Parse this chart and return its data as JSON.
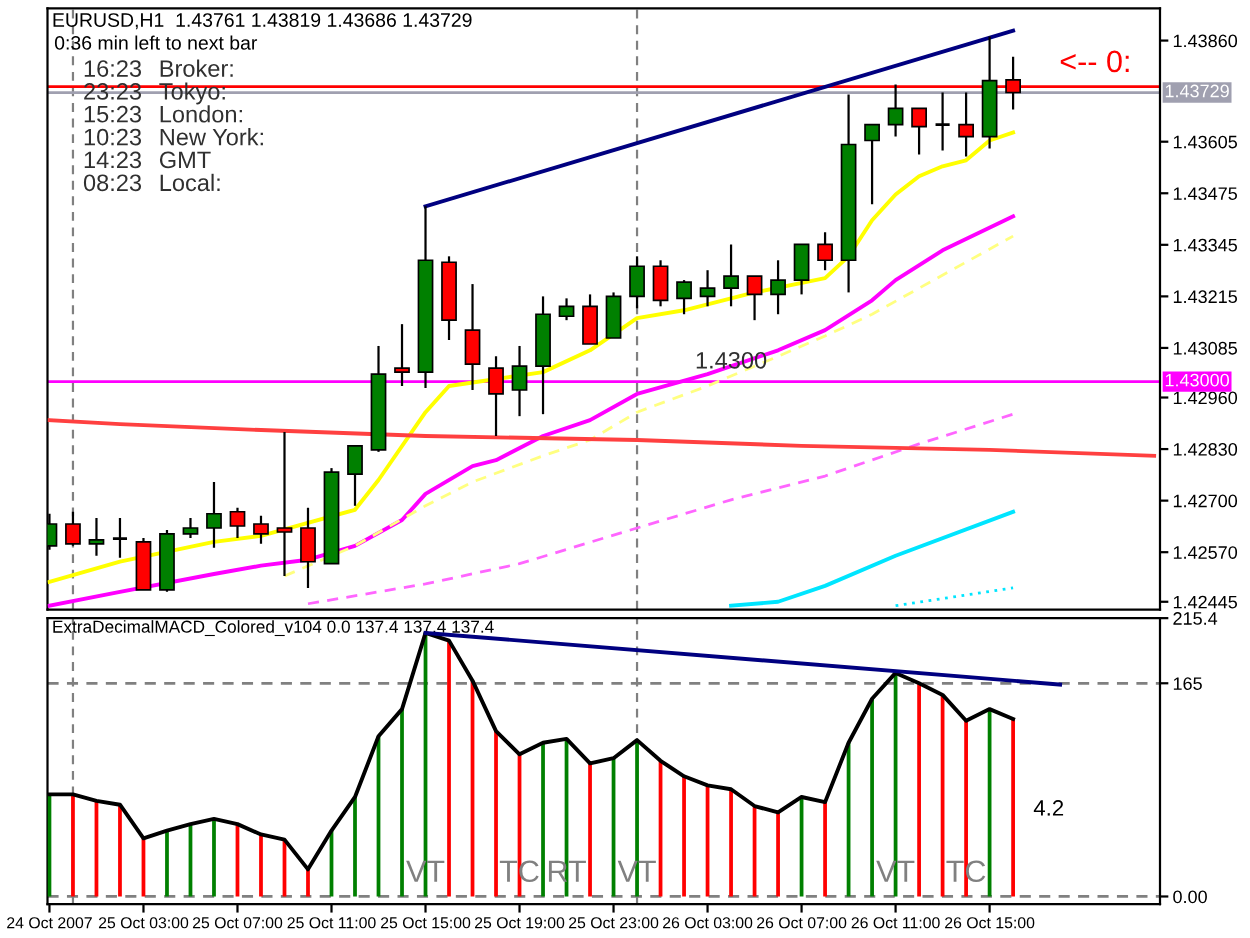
{
  "chart_data": [
    {
      "type": "candlestick",
      "title": "EURUSD,H1  1.43761 1.43819 1.43686 1.43729",
      "subtitle": "0:36 min left to next bar",
      "x": [
        "2007-10-24T23:00",
        "2007-10-25T00:00",
        "2007-10-25T01:00",
        "2007-10-25T02:00",
        "2007-10-25T03:00",
        "2007-10-25T04:00",
        "2007-10-25T05:00",
        "2007-10-25T06:00",
        "2007-10-25T07:00",
        "2007-10-25T08:00",
        "2007-10-25T09:00",
        "2007-10-25T10:00",
        "2007-10-25T11:00",
        "2007-10-25T12:00",
        "2007-10-25T13:00",
        "2007-10-25T14:00",
        "2007-10-25T15:00",
        "2007-10-25T16:00",
        "2007-10-25T17:00",
        "2007-10-25T18:00",
        "2007-10-25T19:00",
        "2007-10-25T20:00",
        "2007-10-25T21:00",
        "2007-10-25T22:00",
        "2007-10-25T23:00",
        "2007-10-26T00:00",
        "2007-10-26T01:00",
        "2007-10-26T02:00",
        "2007-10-26T03:00",
        "2007-10-26T04:00",
        "2007-10-26T05:00",
        "2007-10-26T06:00",
        "2007-10-26T07:00",
        "2007-10-26T08:00",
        "2007-10-26T09:00",
        "2007-10-26T10:00",
        "2007-10-26T11:00",
        "2007-10-26T12:00",
        "2007-10-26T13:00",
        "2007-10-26T14:00",
        "2007-10-26T15:00",
        "2007-10-26T16:00"
      ],
      "ohlc": [
        [
          1.42586,
          1.42667,
          1.42576,
          1.42641
        ],
        [
          1.42641,
          1.42672,
          1.42586,
          1.42591
        ],
        [
          1.42591,
          1.42656,
          1.42561,
          1.42601
        ],
        [
          1.42604,
          1.42656,
          1.42556,
          1.42604
        ],
        [
          1.42596,
          1.42606,
          1.42475,
          1.42475
        ],
        [
          1.42475,
          1.42626,
          1.4247,
          1.42616
        ],
        [
          1.42616,
          1.42656,
          1.42606,
          1.42631
        ],
        [
          1.42631,
          1.42747,
          1.42581,
          1.42667
        ],
        [
          1.42672,
          1.42682,
          1.42606,
          1.42636
        ],
        [
          1.42641,
          1.42662,
          1.42591,
          1.42616
        ],
        [
          1.42631,
          1.42873,
          1.4251,
          1.42621
        ],
        [
          1.42631,
          1.42682,
          1.4248,
          1.42546
        ],
        [
          1.42541,
          1.42782,
          1.42541,
          1.42772
        ],
        [
          1.42767,
          1.42838,
          1.42687,
          1.42838
        ],
        [
          1.42828,
          1.4309,
          1.42823,
          1.43019
        ],
        [
          1.43034,
          1.43145,
          1.42989,
          1.43024
        ],
        [
          1.43024,
          1.43442,
          1.42984,
          1.43306
        ],
        [
          1.43301,
          1.43316,
          1.43105,
          1.43155
        ],
        [
          1.4313,
          1.43246,
          1.42979,
          1.43044
        ],
        [
          1.43034,
          1.43064,
          1.42863,
          1.42969
        ],
        [
          1.42979,
          1.4309,
          1.42913,
          1.43039
        ],
        [
          1.43039,
          1.43215,
          1.42918,
          1.4317
        ],
        [
          1.43165,
          1.4321,
          1.43155,
          1.4319
        ],
        [
          1.4319,
          1.4322,
          1.43095,
          1.43095
        ],
        [
          1.4311,
          1.43225,
          1.4311,
          1.43215
        ],
        [
          1.43215,
          1.43316,
          1.43185,
          1.43291
        ],
        [
          1.43291,
          1.43306,
          1.4319,
          1.43205
        ],
        [
          1.4321,
          1.43256,
          1.4317,
          1.43251
        ],
        [
          1.43215,
          1.43281,
          1.4319,
          1.43236
        ],
        [
          1.43236,
          1.43346,
          1.4319,
          1.43266
        ],
        [
          1.43266,
          1.43266,
          1.43155,
          1.4322
        ],
        [
          1.4322,
          1.43306,
          1.4317,
          1.43256
        ],
        [
          1.43256,
          1.43346,
          1.4322,
          1.43346
        ],
        [
          1.43346,
          1.43377,
          1.43281,
          1.43306
        ],
        [
          1.43306,
          1.43724,
          1.43225,
          1.43598
        ],
        [
          1.43608,
          1.43648,
          1.43447,
          1.43648
        ],
        [
          1.43648,
          1.43749,
          1.43618,
          1.43689
        ],
        [
          1.43689,
          1.43689,
          1.43573,
          1.43643
        ],
        [
          1.43648,
          1.43729,
          1.43583,
          1.43648
        ],
        [
          1.43648,
          1.43729,
          1.43568,
          1.43618
        ],
        [
          1.43618,
          1.4387,
          1.43588,
          1.43759
        ],
        [
          1.43761,
          1.43819,
          1.43686,
          1.43729
        ]
      ],
      "colors": [
        "#008000",
        "#ff0000",
        "#008000",
        "#000000",
        "#ff0000",
        "#008000",
        "#008000",
        "#008000",
        "#ff0000",
        "#ff0000",
        "#ff0000",
        "#ff0000",
        "#008000",
        "#008000",
        "#008000",
        "#ff0000",
        "#008000",
        "#ff0000",
        "#ff0000",
        "#ff0000",
        "#008000",
        "#008000",
        "#008000",
        "#ff0000",
        "#008000",
        "#008000",
        "#ff0000",
        "#008000",
        "#008000",
        "#008000",
        "#ff0000",
        "#008000",
        "#008000",
        "#ff0000",
        "#008000",
        "#008000",
        "#008000",
        "#ff0000",
        "#000000",
        "#ff0000",
        "#008000",
        "#ff0000"
      ],
      "series": [
        {
          "type": "line",
          "color": "#ffff00",
          "line_style": "solid",
          "x": [
            "2007-10-24T23:00",
            "2007-10-25T02:00",
            "2007-10-25T06:00",
            "2007-10-25T08:00",
            "2007-10-25T12:00",
            "2007-10-25T13:00",
            "2007-10-25T15:00",
            "2007-10-25T16:00",
            "2007-10-25T20:00",
            "2007-10-25T22:00",
            "2007-10-26T00:00",
            "2007-10-26T02:00",
            "2007-10-26T05:00",
            "2007-10-26T08:00",
            "2007-10-26T09:00",
            "2007-10-26T10:00",
            "2007-10-26T11:00",
            "2007-10-26T12:00",
            "2007-10-26T13:00",
            "2007-10-26T14:00",
            "2007-10-26T15:00",
            "2007-10-26T16:00"
          ],
          "values": [
            1.42495,
            1.42546,
            1.42596,
            1.42611,
            1.42677,
            1.42752,
            1.42923,
            1.42989,
            1.43024,
            1.43079,
            1.4316,
            1.4318,
            1.43225,
            1.43261,
            1.43316,
            1.43407,
            1.43472,
            1.43518,
            1.43543,
            1.43558,
            1.43608,
            1.43628
          ]
        },
        {
          "type": "line",
          "color": "#ff00ff",
          "line_style": "solid",
          "x": [
            "2007-10-24T23:00",
            "2007-10-25T02:00",
            "2007-10-25T06:00",
            "2007-10-25T08:00",
            "2007-10-25T10:00",
            "2007-10-25T12:00",
            "2007-10-25T14:00",
            "2007-10-25T15:00",
            "2007-10-25T17:00",
            "2007-10-25T18:00",
            "2007-10-25T20:00",
            "2007-10-25T22:00",
            "2007-10-26T00:00",
            "2007-10-26T03:00",
            "2007-10-26T06:00",
            "2007-10-26T08:00",
            "2007-10-26T10:00",
            "2007-10-26T11:00",
            "2007-10-26T13:00",
            "2007-10-26T16:00"
          ],
          "values": [
            1.42435,
            1.4247,
            1.42515,
            1.42536,
            1.42551,
            1.42586,
            1.42651,
            1.42717,
            1.42787,
            1.42802,
            1.42863,
            1.42903,
            1.42969,
            1.43019,
            1.43079,
            1.4313,
            1.43205,
            1.43256,
            1.43331,
            1.43417
          ]
        },
        {
          "type": "line",
          "color": "#ffff80",
          "line_style": "dashed",
          "x": [
            "2007-10-25T09:00",
            "2007-10-25T12:00",
            "2007-10-25T15:00",
            "2007-10-25T17:00",
            "2007-10-25T20:00",
            "2007-10-25T22:00",
            "2007-10-26T00:00",
            "2007-10-26T03:00",
            "2007-10-26T06:00",
            "2007-10-26T08:00",
            "2007-10-26T10:00",
            "2007-10-26T16:00"
          ],
          "values": [
            1.4251,
            1.42586,
            1.42687,
            1.42747,
            1.42813,
            1.42853,
            1.42923,
            1.42989,
            1.43064,
            1.43115,
            1.4317,
            1.43367
          ]
        },
        {
          "type": "line",
          "color": "#ff66ff",
          "line_style": "dashed",
          "x": [
            "2007-10-25T10:00",
            "2007-10-25T15:00",
            "2007-10-25T19:00",
            "2007-10-26T00:00",
            "2007-10-26T04:00",
            "2007-10-26T08:00",
            "2007-10-26T12:00",
            "2007-10-26T16:00"
          ],
          "values": [
            1.4244,
            1.4249,
            1.42541,
            1.42631,
            1.42702,
            1.42762,
            1.42843,
            1.42918
          ]
        },
        {
          "type": "line",
          "color": "#ff4040",
          "line_style": "solid",
          "x": [
            "2007-10-24T23:00",
            "2007-10-25T02:00",
            "2007-10-25T08:00",
            "2007-10-25T15:00",
            "2007-10-26T00:00",
            "2007-10-26T07:00",
            "2007-10-26T15:00",
            "2007-10-26T22:00"
          ],
          "values": [
            1.42903,
            1.42893,
            1.42878,
            1.42863,
            1.42853,
            1.42838,
            1.42828,
            1.42813
          ]
        },
        {
          "type": "line",
          "color": "#00e5ff",
          "line_style": "solid",
          "x": [
            "2007-10-26T04:00",
            "2007-10-26T06:00",
            "2007-10-26T08:00",
            "2007-10-26T11:00",
            "2007-10-26T16:00"
          ],
          "values": [
            1.42435,
            1.42445,
            1.42485,
            1.42561,
            1.42672
          ]
        },
        {
          "type": "line",
          "color": "#00e5ff",
          "line_style": "dotted",
          "x": [
            "2007-10-26T11:00",
            "2007-10-26T16:00"
          ],
          "values": [
            1.42435,
            1.4248
          ]
        },
        {
          "type": "line",
          "color": "#000080",
          "line_style": "solid",
          "x": [
            "2007-10-25T15:00",
            "2007-10-26T16:00"
          ],
          "values": [
            1.43442,
            1.43885
          ]
        }
      ],
      "xlim": [
        "2007-10-24T22:55",
        "2007-10-26T22:15"
      ],
      "ylim": [
        1.42425,
        1.43941
      ],
      "yticks": [
        {
          "value": 1.4386,
          "label": "1.43860"
        },
        1.43605,
        1.43475,
        1.43345,
        1.43215,
        1.43085,
        {
          "value": 1.4296,
          "label": "1.42960"
        },
        {
          "value": 1.4283,
          "label": "1.42830"
        },
        {
          "value": 1.427,
          "label": "1.42700"
        },
        {
          "value": 1.4257,
          "label": "1.42570"
        },
        1.42445
      ],
      "tick_labels": "y",
      "ref_lines": [
        {
          "axis": "y",
          "value": 1.43,
          "label": "1.43000",
          "color": "#ff00ff",
          "line_style": "solid"
        },
        {
          "axis": "y",
          "value": 1.43729,
          "label": "1.43729",
          "color": "#a0a0b0",
          "line_style": "solid"
        },
        {
          "axis": "y",
          "value": 1.43744,
          "color": "#ff0000",
          "line_style": "solid"
        },
        {
          "axis": "x",
          "value": "2007-10-25T00:00",
          "color": "#808080",
          "line_style": "dashed"
        },
        {
          "axis": "x",
          "value": "2007-10-26T00:00",
          "color": "#808080",
          "line_style": "dashed"
        }
      ],
      "annotations": [
        "16:23",
        "Broker:",
        "23:23",
        "Tokyo:",
        "15:23",
        "London:",
        "10:23",
        "New York:",
        "14:23",
        "GMT",
        "08:23",
        "Local:",
        {
          "text": "1.4300",
          "x": "2007-10-26T04:00",
          "y": 1.43
        },
        {
          "text": "<-- 0:",
          "x": "2007-10-26T19:30",
          "y": 1.43744
        }
      ]
    },
    {
      "type": "bar",
      "title": "ExtraDecimalMACD_Colored_v104 0.0 137.4 137.4 137.4",
      "x": [
        "2007-10-24T23:00",
        "2007-10-25T00:00",
        "2007-10-25T01:00",
        "2007-10-25T02:00",
        "2007-10-25T03:00",
        "2007-10-25T04:00",
        "2007-10-25T05:00",
        "2007-10-25T06:00",
        "2007-10-25T07:00",
        "2007-10-25T08:00",
        "2007-10-25T09:00",
        "2007-10-25T10:00",
        "2007-10-25T11:00",
        "2007-10-25T12:00",
        "2007-10-25T13:00",
        "2007-10-25T14:00",
        "2007-10-25T15:00",
        "2007-10-25T16:00",
        "2007-10-25T17:00",
        "2007-10-25T18:00",
        "2007-10-25T19:00",
        "2007-10-25T20:00",
        "2007-10-25T21:00",
        "2007-10-25T22:00",
        "2007-10-25T23:00",
        "2007-10-26T00:00",
        "2007-10-26T01:00",
        "2007-10-26T02:00",
        "2007-10-26T03:00",
        "2007-10-26T04:00",
        "2007-10-26T05:00",
        "2007-10-26T06:00",
        "2007-10-26T07:00",
        "2007-10-26T08:00",
        "2007-10-26T09:00",
        "2007-10-26T10:00",
        "2007-10-26T11:00",
        "2007-10-26T12:00",
        "2007-10-26T13:00",
        "2007-10-26T14:00",
        "2007-10-26T15:00",
        "2007-10-26T16:00"
      ],
      "series": [
        {
          "type": "bar",
          "colors": [
            "#008000",
            "#ff0000",
            "#ff0000",
            "#ff0000",
            "#ff0000",
            "#008000",
            "#008000",
            "#008000",
            "#ff0000",
            "#ff0000",
            "#ff0000",
            "#ff0000",
            "#008000",
            "#008000",
            "#008000",
            "#008000",
            "#008000",
            "#ff0000",
            "#ff0000",
            "#ff0000",
            "#ff0000",
            "#008000",
            "#008000",
            "#ff0000",
            "#008000",
            "#008000",
            "#ff0000",
            "#ff0000",
            "#ff0000",
            "#ff0000",
            "#ff0000",
            "#ff0000",
            "#008000",
            "#ff0000",
            "#008000",
            "#008000",
            "#008000",
            "#ff0000",
            "#ff0000",
            "#ff0000",
            "#008000",
            "#ff0000"
          ],
          "values": [
            79,
            79,
            74,
            71,
            45,
            51,
            56,
            60,
            56,
            48,
            44,
            21,
            51,
            77,
            124,
            145,
            204,
            198,
            167,
            128,
            110,
            119,
            122,
            103,
            107,
            121,
            105,
            93,
            86,
            83,
            70,
            65,
            77,
            73,
            119,
            153,
            173,
            165,
            156,
            136,
            145,
            137.4
          ]
        },
        {
          "type": "line",
          "color": "#000000",
          "line_style": "solid",
          "values": [
            79,
            79,
            74,
            71,
            45,
            51,
            56,
            60,
            56,
            48,
            44,
            21,
            51,
            77,
            124,
            145,
            204,
            198,
            167,
            128,
            110,
            119,
            122,
            103,
            107,
            121,
            105,
            93,
            86,
            83,
            70,
            65,
            77,
            73,
            119,
            153,
            173,
            165,
            156,
            136,
            145,
            137.4
          ]
        },
        {
          "type": "line",
          "color": "#000080",
          "line_style": "solid",
          "x": [
            "2007-10-25T15:00",
            "2007-10-26T18:00"
          ],
          "values": [
            204,
            164
          ]
        }
      ],
      "xlim": [
        "2007-10-24T22:55",
        "2007-10-26T22:15"
      ],
      "xticks": [
        {
          "value": "2007-10-24T23:00",
          "label": "24 Oct 2007"
        },
        {
          "value": "2007-10-25T03:00",
          "label": "25 Oct 03:00"
        },
        {
          "value": "2007-10-25T07:00",
          "label": "25 Oct 07:00"
        },
        {
          "value": "2007-10-25T11:00",
          "label": "25 Oct 11:00"
        },
        {
          "value": "2007-10-25T15:00",
          "label": "25 Oct 15:00"
        },
        {
          "value": "2007-10-25T19:00",
          "label": "25 Oct 19:00"
        },
        {
          "value": "2007-10-25T23:00",
          "label": "25 Oct 23:00"
        },
        {
          "value": "2007-10-26T03:00",
          "label": "26 Oct 03:00"
        },
        {
          "value": "2007-10-26T07:00",
          "label": "26 Oct 07:00"
        },
        {
          "value": "2007-10-26T11:00",
          "label": "26 Oct 11:00"
        },
        {
          "value": "2007-10-26T15:00",
          "label": "26 Oct 15:00"
        }
      ],
      "ylim": [
        -6,
        215.4
      ],
      "yticks": [
        215.4,
        165,
        {
          "value": 0,
          "label": "0.00"
        }
      ],
      "ref_lines": [
        {
          "axis": "y",
          "value": 165,
          "color": "#808080",
          "line_style": "dashed"
        },
        {
          "axis": "y",
          "value": 0,
          "color": "#808080",
          "line_style": "dashed"
        },
        {
          "axis": "x",
          "value": "2007-10-25T00:00",
          "color": "#808080",
          "line_style": "dashed"
        },
        {
          "axis": "x",
          "value": "2007-10-26T00:00",
          "color": "#808080",
          "line_style": "dashed"
        }
      ],
      "annotations": [
        "4.2",
        {
          "text": "VT",
          "x": "2007-10-25T15:00",
          "y": 0
        },
        {
          "text": "TC",
          "x": "2007-10-25T19:00",
          "y": 0
        },
        {
          "text": "RT",
          "x": "2007-10-25T21:00",
          "y": 0
        },
        {
          "text": "VT",
          "x": "2007-10-26T00:00",
          "y": 0
        },
        {
          "text": "VT",
          "x": "2007-10-26T11:00",
          "y": 0
        },
        {
          "text": "TC",
          "x": "2007-10-26T14:00",
          "y": 0
        }
      ]
    }
  ]
}
